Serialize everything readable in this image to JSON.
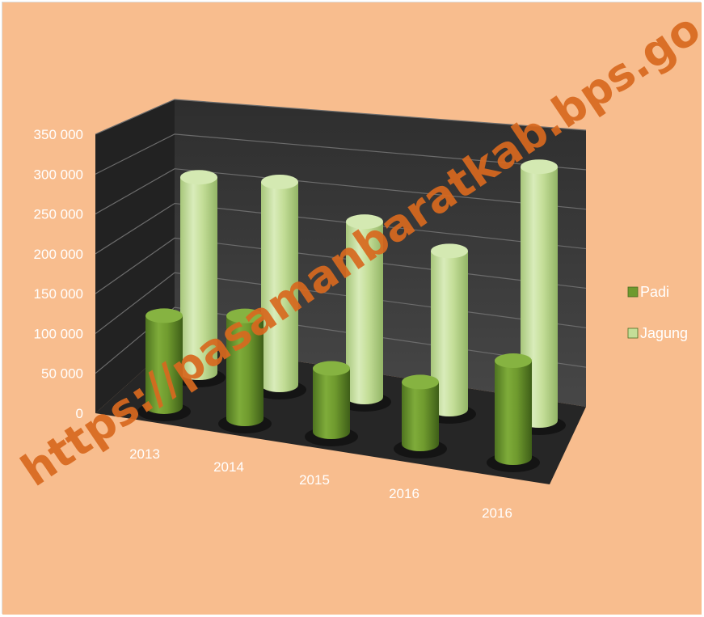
{
  "colors": {
    "background": "#f8bd8e",
    "wall": "#3a3a3a",
    "floor": "#262626",
    "padi": "#6f9a2e",
    "jagung": "#c4de98",
    "text": "#ffffff",
    "watermark": "#d8691f"
  },
  "watermark": "https://pasamanbaratkab.bps.go.id",
  "chart_data": {
    "type": "bar",
    "style": "3d-cylinder",
    "categories": [
      "2013",
      "2014",
      "2015",
      "2016",
      "2016"
    ],
    "series": [
      {
        "name": "Padi",
        "values": [
          122000,
          138000,
          85000,
          83000,
          130000
        ]
      },
      {
        "name": "Jagung",
        "values": [
          262000,
          272000,
          235000,
          212000,
          340000
        ]
      }
    ],
    "yticks": [
      "0",
      "50 000",
      "100 000",
      "150 000",
      "200 000",
      "250 000",
      "300 000",
      "350 000"
    ],
    "ylim": [
      0,
      350000
    ],
    "grid": true,
    "legend": "right"
  }
}
